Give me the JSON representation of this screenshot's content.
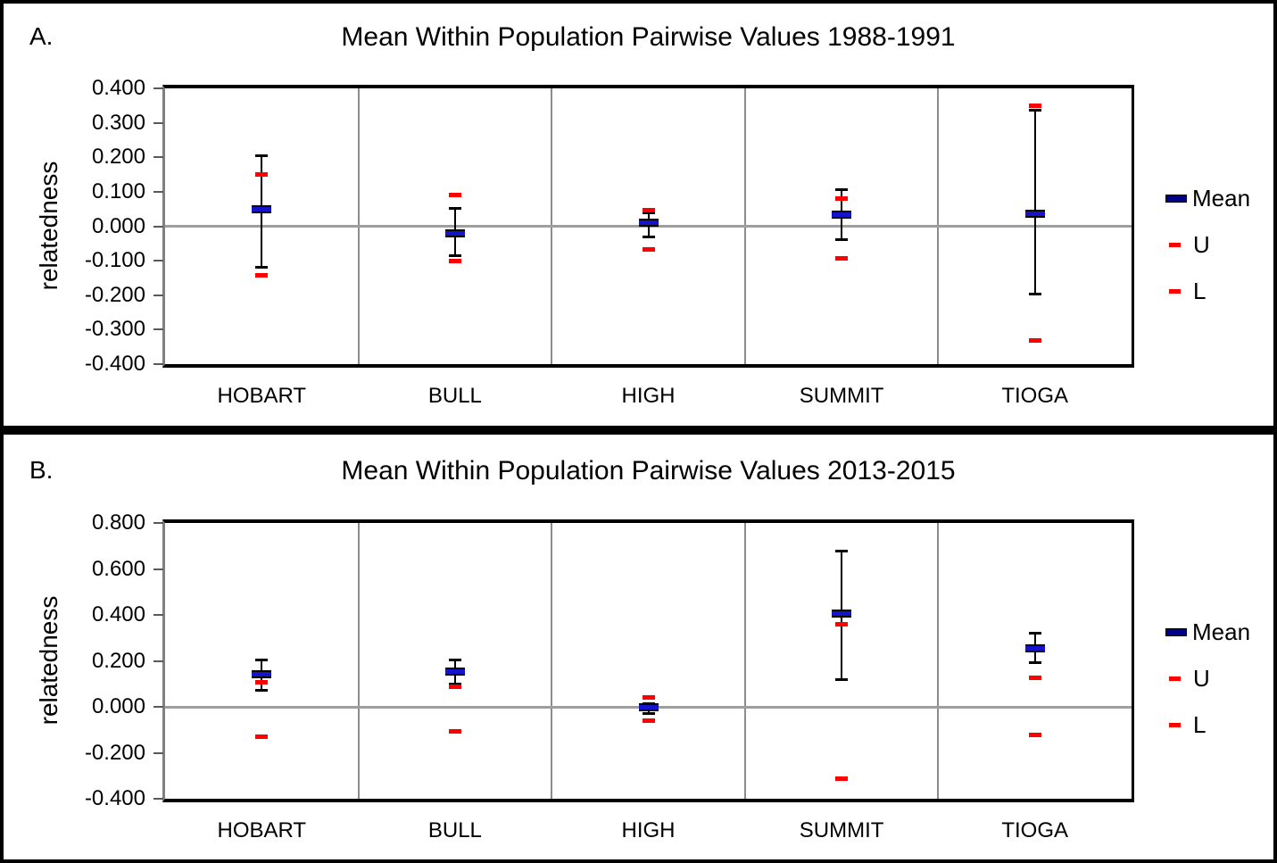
{
  "figure": {
    "panels": [
      {
        "label": "A."
      },
      {
        "label": "B."
      }
    ]
  },
  "legend_labels": {
    "mean": "Mean",
    "upper": "U",
    "lower": "L"
  },
  "colors": {
    "mean_marker_core": "#1414cc",
    "mean_marker_outline": "#000000",
    "legend_mean_swatch": "#00008b",
    "ci_marker": "#ff0000",
    "zero_line": "#9e9e9e",
    "category_separator": "#8c8c8c",
    "axis_line": "#808080",
    "frame": "#000000"
  },
  "chart_data": [
    {
      "type": "scatter",
      "subtype": "mean-with-error-bars",
      "panel": "A",
      "title": "Mean Within Population Pairwise Values 1988-1991",
      "ylabel": "relatedness",
      "ylim": [
        -0.4,
        0.4
      ],
      "ytick_step": 0.1,
      "grid": "zero line and vertical category separators",
      "legend_position": "right",
      "categories": [
        "HOBART",
        "BULL",
        "HIGH",
        "SUMMIT",
        "TIOGA"
      ],
      "series": [
        {
          "name": "Mean",
          "values": [
            0.048,
            -0.02,
            0.01,
            0.034,
            0.036
          ]
        },
        {
          "name": "U",
          "values": [
            0.149,
            0.091,
            0.047,
            0.081,
            0.35
          ]
        },
        {
          "name": "L",
          "values": [
            -0.143,
            -0.1,
            -0.068,
            -0.094,
            -0.332
          ]
        },
        {
          "name": "whisker_upper",
          "values": [
            0.205,
            0.053,
            0.04,
            0.107,
            0.337
          ]
        },
        {
          "name": "whisker_lower",
          "values": [
            -0.118,
            -0.085,
            -0.032,
            -0.04,
            -0.196
          ]
        }
      ]
    },
    {
      "type": "scatter",
      "subtype": "mean-with-error-bars",
      "panel": "B",
      "title": "Mean Within Population Pairwise Values 2013-2015",
      "ylabel": "relatedness",
      "ylim": [
        -0.4,
        0.8
      ],
      "ytick_step": 0.2,
      "grid": "zero line and vertical category separators",
      "legend_position": "right",
      "categories": [
        "HOBART",
        "BULL",
        "HIGH",
        "SUMMIT",
        "TIOGA"
      ],
      "series": [
        {
          "name": "Mean",
          "values": [
            0.14,
            0.155,
            0.0,
            0.407,
            0.254
          ]
        },
        {
          "name": "U",
          "values": [
            0.105,
            0.088,
            0.04,
            0.361,
            0.125
          ]
        },
        {
          "name": "L",
          "values": [
            -0.132,
            -0.105,
            -0.06,
            -0.311,
            -0.123
          ]
        },
        {
          "name": "whisker_upper",
          "values": [
            0.203,
            0.205,
            0.015,
            0.676,
            0.319
          ]
        },
        {
          "name": "whisker_lower",
          "values": [
            0.07,
            0.1,
            -0.028,
            0.118,
            0.191
          ]
        }
      ]
    }
  ]
}
